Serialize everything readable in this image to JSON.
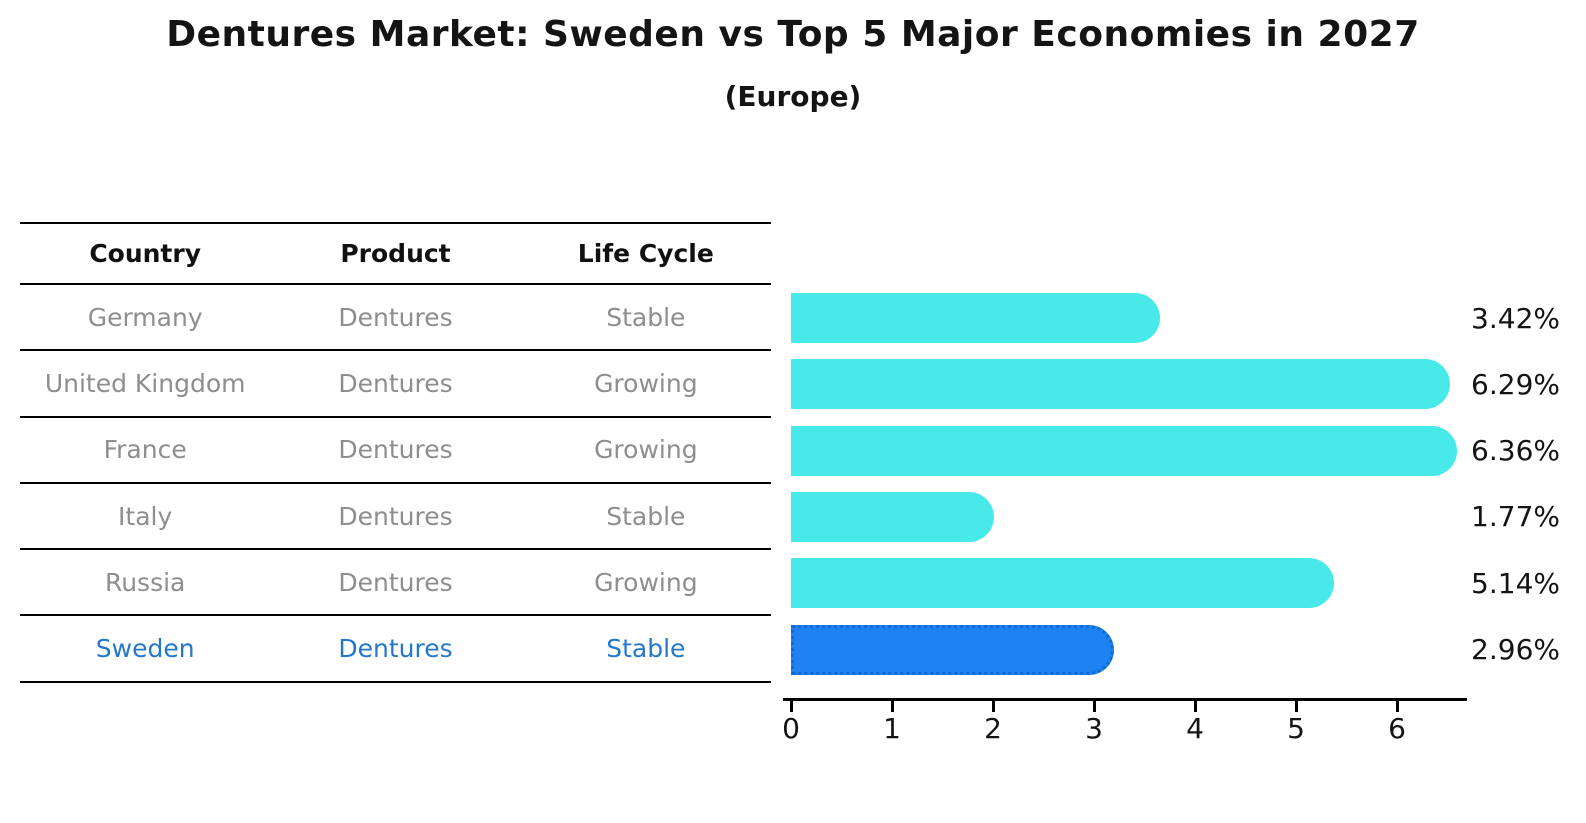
{
  "title": "Dentures Market: Sweden vs Top 5 Major Economies in 2027",
  "subtitle": "(Europe)",
  "table": {
    "headers": [
      "Country",
      "Product",
      "Life Cycle"
    ],
    "rows": [
      {
        "country": "Germany",
        "product": "Dentures",
        "life_cycle": "Stable"
      },
      {
        "country": "United Kingdom",
        "product": "Dentures",
        "life_cycle": "Growing"
      },
      {
        "country": "France",
        "product": "Dentures",
        "life_cycle": "Growing"
      },
      {
        "country": "Italy",
        "product": "Dentures",
        "life_cycle": "Stable"
      },
      {
        "country": "Russia",
        "product": "Dentures",
        "life_cycle": "Growing"
      },
      {
        "country": "Sweden",
        "product": "Dentures",
        "life_cycle": "Stable"
      }
    ]
  },
  "chart_data": {
    "type": "bar",
    "orientation": "horizontal",
    "title": "Dentures Market: Sweden vs Top 5 Major Economies in 2027",
    "subtitle": "(Europe)",
    "categories": [
      "Germany",
      "United Kingdom",
      "France",
      "Italy",
      "Russia",
      "Sweden"
    ],
    "values": [
      3.42,
      6.29,
      6.36,
      1.77,
      5.14,
      2.96
    ],
    "labels": [
      "3.42%",
      "6.29%",
      "6.36%",
      "1.77%",
      "5.14%",
      "2.96%"
    ],
    "x_ticks": [
      0,
      1,
      2,
      3,
      4,
      5,
      6
    ],
    "xlim": [
      0,
      6.6
    ],
    "grid": false,
    "legend": false,
    "highlight_index": 5
  },
  "colors": {
    "bar": "#48E9E9",
    "highlight_bar": "#1E82F0",
    "highlight_bar_border": "#0E6BD6",
    "highlight_text": "#2478CC",
    "cell_text": "#8E8E8E",
    "heading_text": "#111111",
    "value_text": "#141414"
  }
}
